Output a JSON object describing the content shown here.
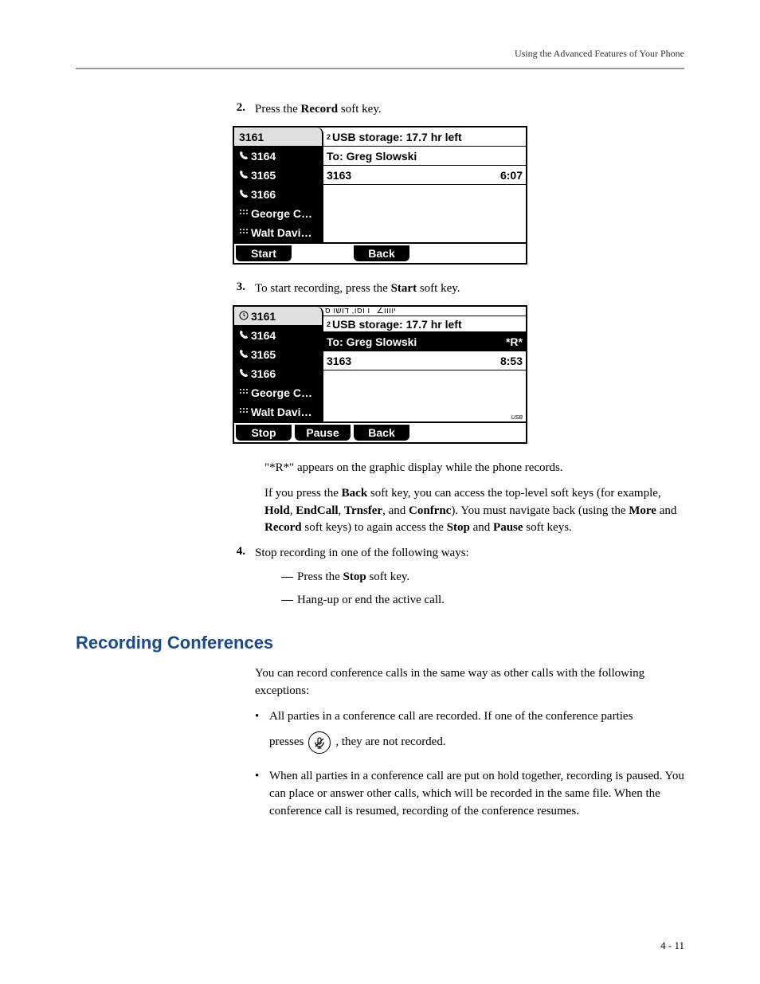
{
  "header": {
    "section_title": "Using the Advanced Features of Your Phone"
  },
  "step2": {
    "num": "2.",
    "text_before": "Press the ",
    "bold": "Record",
    "text_after": " soft key."
  },
  "screenshot1": {
    "sidebar": [
      {
        "label": "3161",
        "selected": true,
        "icon": ""
      },
      {
        "label": "3164",
        "selected": false,
        "icon": "handset"
      },
      {
        "label": "3165",
        "selected": false,
        "icon": "handset"
      },
      {
        "label": "3166",
        "selected": false,
        "icon": "handset"
      },
      {
        "label": "George C…",
        "selected": false,
        "icon": "dots"
      },
      {
        "label": "Walt Davi…",
        "selected": false,
        "icon": "dots"
      }
    ],
    "main_top_icon": "2",
    "main_top": "USB storage: 17.7 hr left",
    "line1_left": "To: Greg Slowski",
    "line1_right": "",
    "line2_left": "3163",
    "line2_right": "6:07",
    "softkeys": [
      "Start",
      "",
      "Back",
      ""
    ]
  },
  "step3": {
    "num": "3.",
    "text_before": "To start recording, press the ",
    "bold": "Start",
    "text_after": " soft key."
  },
  "screenshot2": {
    "scroll_left": "ו וסו, דושו ס",
    "scroll_right": "∠יוווו",
    "sidebar": [
      {
        "label": "3161",
        "selected": true,
        "icon": "clock"
      },
      {
        "label": "3164",
        "selected": false,
        "icon": "handset"
      },
      {
        "label": "3165",
        "selected": false,
        "icon": "handset"
      },
      {
        "label": "3166",
        "selected": false,
        "icon": "handset"
      },
      {
        "label": "George C…",
        "selected": false,
        "icon": "dots"
      },
      {
        "label": "Walt Davi…",
        "selected": false,
        "icon": "dots"
      }
    ],
    "main_top_icon": "2",
    "main_top": "USB storage: 17.7 hr left",
    "line1_left": "To: Greg Slowski",
    "line1_right": "*R*",
    "line2_left": "3163",
    "line2_right": "8:53",
    "usb_label": "USB",
    "softkeys": [
      "Stop",
      "Pause",
      "Back",
      ""
    ]
  },
  "para_r": "\"*R*\" appears on the graphic display while the phone records.",
  "para_back": {
    "p1a": "If you press the ",
    "b1": "Back",
    "p1b": " soft key, you can access the top-level soft keys (for example, ",
    "b2": "Hold",
    "sep2": ", ",
    "b3": "EndCall",
    "sep3": ", ",
    "b4": "Trnsfer",
    "sep4": ", and ",
    "b5": "Confrnc",
    "p1c": "). You must navigate back (using the ",
    "b6": "More",
    "sep6": " and ",
    "b7": "Record",
    "p1d": " soft keys) to again access the ",
    "b8": "Stop",
    "sep8": " and ",
    "b9": "Pause",
    "p1e": " soft keys."
  },
  "step4": {
    "num": "4.",
    "text": "Stop recording in one of the following ways:"
  },
  "step4_sub": [
    {
      "dash": "—",
      "before": "Press the ",
      "bold": "Stop",
      "after": " soft key."
    },
    {
      "dash": "—",
      "before": "",
      "bold": "",
      "after": "Hang-up or end the active call."
    }
  ],
  "heading": "Recording Conferences",
  "intro": "You can record conference calls in the same way as other calls with the following exceptions:",
  "bullets": [
    {
      "line1": "All parties in a conference call are recorded. If one of the conference parties",
      "presses_word": "presses",
      "after_icon": ", they are not recorded."
    },
    {
      "text": "When all parties in a conference call are put on hold together, recording is paused. You can place or answer other calls, which will be recorded in the same file. When the conference call is resumed, recording of the conference resumes."
    }
  ],
  "page_num": "4 - 11",
  "colors": {
    "heading": "#1a4a8a",
    "ink": "#000000",
    "rule": "#999999",
    "white": "#ffffff"
  }
}
